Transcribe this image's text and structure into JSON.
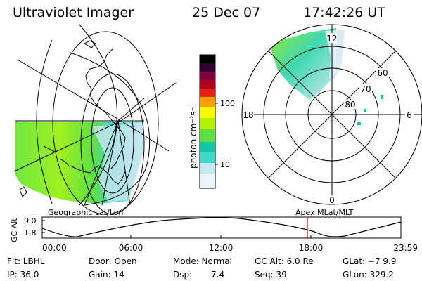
{
  "header": {
    "title": "Ultraviolet Imager",
    "date": "25 Dec 07",
    "time": "17:42:26 UT"
  },
  "colorbar": {
    "label": "photon cm⁻²s⁻¹",
    "ticks": [
      "100",
      "10"
    ],
    "colors": [
      "#ffffff",
      "#c8e6f0",
      "#40d8c8",
      "#10c8a0",
      "#60e040",
      "#b0f000",
      "#f8f800",
      "#f8a000",
      "#e82010",
      "#b00020",
      "#800040",
      "#300030",
      "#000000"
    ]
  },
  "polar": {
    "top_label": "12",
    "bottom_label": "0",
    "left_label": "18",
    "right_label": "6",
    "lat_labels": [
      "60",
      "70",
      "80"
    ]
  },
  "timeline": {
    "ylabel": "GC Alt",
    "yticks": [
      "9.0",
      "1.8"
    ],
    "left_caption": "Geographic Lat/Lon",
    "right_caption": "Apex  MLat/MLT",
    "time_ticks": [
      "00:00",
      "06:00",
      "12:00",
      "18:00",
      "23:59"
    ],
    "marker_color": "#ff0000"
  },
  "info": {
    "filter": "Flt: LBHL",
    "ip": "IP: 36.0",
    "door": "Door: Open",
    "gain": "Gain: 14",
    "mode": "Mode: Normal",
    "dsp_label": "Dsp:",
    "dsp_value": "7.4",
    "gc_alt": "GC Alt: 6.0 Re",
    "seq": "Seq: 39",
    "glat": "GLat: −7 9.9",
    "glon": "GLon: 329.2"
  }
}
